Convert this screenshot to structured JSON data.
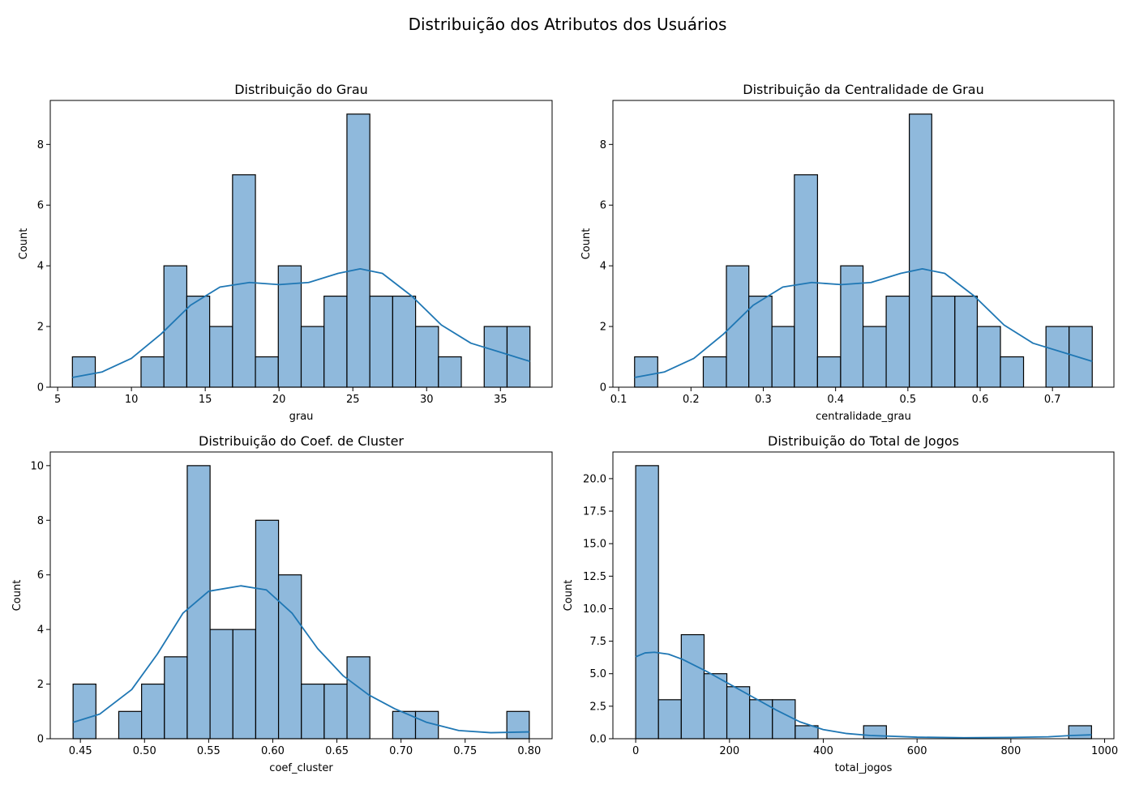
{
  "suptitle": "Distribuição dos Atributos dos Usuários",
  "colors": {
    "bar_fill": "#8fb9dc",
    "bar_edge": "#000000",
    "kde_line": "#1f77b4",
    "axis": "#000000"
  },
  "chart_data": [
    {
      "type": "bar",
      "title": "Distribuição do Grau",
      "xlabel": "grau",
      "ylabel": "Count",
      "xlim": [
        4.5,
        38.5
      ],
      "ylim": [
        0,
        9.45
      ],
      "xticks": [
        5,
        10,
        15,
        20,
        25,
        30,
        35
      ],
      "xtick_labels": [
        "5",
        "10",
        "15",
        "20",
        "25",
        "30",
        "35"
      ],
      "yticks": [
        0,
        2,
        4,
        6,
        8
      ],
      "ytick_labels": [
        "0",
        "2",
        "4",
        "6",
        "8"
      ],
      "bins": [
        {
          "x0": 6.0,
          "x1": 7.55,
          "count": 1
        },
        {
          "x0": 7.55,
          "x1": 9.1,
          "count": 0
        },
        {
          "x0": 9.1,
          "x1": 10.65,
          "count": 0
        },
        {
          "x0": 10.65,
          "x1": 12.2,
          "count": 1
        },
        {
          "x0": 12.2,
          "x1": 13.75,
          "count": 4
        },
        {
          "x0": 13.75,
          "x1": 15.3,
          "count": 3
        },
        {
          "x0": 15.3,
          "x1": 16.85,
          "count": 2
        },
        {
          "x0": 16.85,
          "x1": 18.4,
          "count": 7
        },
        {
          "x0": 18.4,
          "x1": 19.95,
          "count": 1
        },
        {
          "x0": 19.95,
          "x1": 21.5,
          "count": 4
        },
        {
          "x0": 21.5,
          "x1": 23.05,
          "count": 2
        },
        {
          "x0": 23.05,
          "x1": 24.6,
          "count": 3
        },
        {
          "x0": 24.6,
          "x1": 26.15,
          "count": 9
        },
        {
          "x0": 26.15,
          "x1": 27.7,
          "count": 3
        },
        {
          "x0": 27.7,
          "x1": 29.25,
          "count": 3
        },
        {
          "x0": 29.25,
          "x1": 30.8,
          "count": 2
        },
        {
          "x0": 30.8,
          "x1": 32.35,
          "count": 1
        },
        {
          "x0": 32.35,
          "x1": 33.9,
          "count": 0
        },
        {
          "x0": 33.9,
          "x1": 35.45,
          "count": 2
        },
        {
          "x0": 35.45,
          "x1": 37.0,
          "count": 2
        }
      ],
      "kde": [
        [
          6,
          0.32
        ],
        [
          8,
          0.5
        ],
        [
          10,
          0.95
        ],
        [
          12,
          1.75
        ],
        [
          14,
          2.7
        ],
        [
          16,
          3.3
        ],
        [
          18,
          3.45
        ],
        [
          20,
          3.38
        ],
        [
          22,
          3.45
        ],
        [
          24,
          3.75
        ],
        [
          25.5,
          3.9
        ],
        [
          27,
          3.75
        ],
        [
          29,
          3.0
        ],
        [
          31,
          2.05
        ],
        [
          33,
          1.45
        ],
        [
          35,
          1.15
        ],
        [
          37,
          0.85
        ]
      ]
    },
    {
      "type": "bar",
      "title": "Distribuição da Centralidade de Grau",
      "xlabel": "centralidade_grau",
      "ylabel": "Count",
      "xlim": [
        0.092,
        0.785
      ],
      "ylim": [
        0,
        9.45
      ],
      "xticks": [
        0.1,
        0.2,
        0.3,
        0.4,
        0.5,
        0.6,
        0.7
      ],
      "xtick_labels": [
        "0.1",
        "0.2",
        "0.3",
        "0.4",
        "0.5",
        "0.6",
        "0.7"
      ],
      "yticks": [
        0,
        2,
        4,
        6,
        8
      ],
      "ytick_labels": [
        "0",
        "2",
        "4",
        "6",
        "8"
      ],
      "bins": [
        {
          "x0": 0.122,
          "x1": 0.154,
          "count": 1
        },
        {
          "x0": 0.154,
          "x1": 0.185,
          "count": 0
        },
        {
          "x0": 0.185,
          "x1": 0.217,
          "count": 0
        },
        {
          "x0": 0.217,
          "x1": 0.249,
          "count": 1
        },
        {
          "x0": 0.249,
          "x1": 0.28,
          "count": 4
        },
        {
          "x0": 0.28,
          "x1": 0.312,
          "count": 3
        },
        {
          "x0": 0.312,
          "x1": 0.343,
          "count": 2
        },
        {
          "x0": 0.343,
          "x1": 0.375,
          "count": 7
        },
        {
          "x0": 0.375,
          "x1": 0.407,
          "count": 1
        },
        {
          "x0": 0.407,
          "x1": 0.438,
          "count": 4
        },
        {
          "x0": 0.438,
          "x1": 0.47,
          "count": 2
        },
        {
          "x0": 0.47,
          "x1": 0.502,
          "count": 3
        },
        {
          "x0": 0.502,
          "x1": 0.533,
          "count": 9
        },
        {
          "x0": 0.533,
          "x1": 0.565,
          "count": 3
        },
        {
          "x0": 0.565,
          "x1": 0.596,
          "count": 3
        },
        {
          "x0": 0.596,
          "x1": 0.628,
          "count": 2
        },
        {
          "x0": 0.628,
          "x1": 0.66,
          "count": 1
        },
        {
          "x0": 0.66,
          "x1": 0.691,
          "count": 0
        },
        {
          "x0": 0.691,
          "x1": 0.723,
          "count": 2
        },
        {
          "x0": 0.723,
          "x1": 0.755,
          "count": 2
        }
      ],
      "kde": [
        [
          0.122,
          0.32
        ],
        [
          0.163,
          0.5
        ],
        [
          0.204,
          0.95
        ],
        [
          0.245,
          1.75
        ],
        [
          0.286,
          2.7
        ],
        [
          0.327,
          3.3
        ],
        [
          0.367,
          3.45
        ],
        [
          0.408,
          3.38
        ],
        [
          0.449,
          3.45
        ],
        [
          0.49,
          3.75
        ],
        [
          0.52,
          3.9
        ],
        [
          0.551,
          3.75
        ],
        [
          0.592,
          3.0
        ],
        [
          0.633,
          2.05
        ],
        [
          0.673,
          1.45
        ],
        [
          0.714,
          1.15
        ],
        [
          0.755,
          0.85
        ]
      ]
    },
    {
      "type": "bar",
      "title": "Distribuição do Coef. de Cluster",
      "xlabel": "coef_cluster",
      "ylabel": "Count",
      "xlim": [
        0.4265,
        0.8178
      ],
      "ylim": [
        0,
        10.5
      ],
      "xticks": [
        0.45,
        0.5,
        0.55,
        0.6,
        0.65,
        0.7,
        0.75,
        0.8
      ],
      "xtick_labels": [
        "0.45",
        "0.50",
        "0.55",
        "0.60",
        "0.65",
        "0.70",
        "0.75",
        "0.80"
      ],
      "yticks": [
        0,
        2,
        4,
        6,
        8,
        10
      ],
      "ytick_labels": [
        "0",
        "2",
        "4",
        "6",
        "8",
        "10"
      ],
      "bins": [
        {
          "x0": 0.4443,
          "x1": 0.4621,
          "count": 2
        },
        {
          "x0": 0.4621,
          "x1": 0.4799,
          "count": 0
        },
        {
          "x0": 0.4799,
          "x1": 0.4977,
          "count": 1
        },
        {
          "x0": 0.4977,
          "x1": 0.5155,
          "count": 2
        },
        {
          "x0": 0.5155,
          "x1": 0.5333,
          "count": 3
        },
        {
          "x0": 0.5333,
          "x1": 0.5511,
          "count": 10
        },
        {
          "x0": 0.5511,
          "x1": 0.5689,
          "count": 4
        },
        {
          "x0": 0.5689,
          "x1": 0.5867,
          "count": 4
        },
        {
          "x0": 0.5867,
          "x1": 0.6045,
          "count": 8
        },
        {
          "x0": 0.6045,
          "x1": 0.6223,
          "count": 6
        },
        {
          "x0": 0.6223,
          "x1": 0.6401,
          "count": 2
        },
        {
          "x0": 0.6401,
          "x1": 0.6579,
          "count": 2
        },
        {
          "x0": 0.6579,
          "x1": 0.6757,
          "count": 3
        },
        {
          "x0": 0.6757,
          "x1": 0.6935,
          "count": 0
        },
        {
          "x0": 0.6935,
          "x1": 0.7113,
          "count": 1
        },
        {
          "x0": 0.7113,
          "x1": 0.7291,
          "count": 1
        },
        {
          "x0": 0.7291,
          "x1": 0.7469,
          "count": 0
        },
        {
          "x0": 0.7469,
          "x1": 0.7647,
          "count": 0
        },
        {
          "x0": 0.7647,
          "x1": 0.7825,
          "count": 0
        },
        {
          "x0": 0.7825,
          "x1": 0.8,
          "count": 1
        }
      ],
      "kde": [
        [
          0.4443,
          0.6
        ],
        [
          0.465,
          0.9
        ],
        [
          0.49,
          1.8
        ],
        [
          0.51,
          3.1
        ],
        [
          0.53,
          4.6
        ],
        [
          0.55,
          5.4
        ],
        [
          0.575,
          5.6
        ],
        [
          0.595,
          5.45
        ],
        [
          0.615,
          4.6
        ],
        [
          0.635,
          3.3
        ],
        [
          0.655,
          2.3
        ],
        [
          0.675,
          1.6
        ],
        [
          0.695,
          1.1
        ],
        [
          0.72,
          0.6
        ],
        [
          0.745,
          0.3
        ],
        [
          0.77,
          0.22
        ],
        [
          0.8,
          0.25
        ]
      ]
    },
    {
      "type": "bar",
      "title": "Distribuição do Total de Jogos",
      "xlabel": "total_jogos",
      "ylabel": "Count",
      "xlim": [
        -48.6,
        1019.8
      ],
      "ylim": [
        0,
        22.05
      ],
      "xticks": [
        0,
        200,
        400,
        600,
        800,
        1000
      ],
      "xtick_labels": [
        "0",
        "200",
        "400",
        "600",
        "800",
        "1000"
      ],
      "yticks": [
        0,
        2.5,
        5,
        7.5,
        10,
        12.5,
        15,
        17.5,
        20
      ],
      "ytick_labels": [
        "0.0",
        "2.5",
        "5.0",
        "7.5",
        "10.0",
        "12.5",
        "15.0",
        "17.5",
        "20.0"
      ],
      "bins": [
        {
          "x0": 0,
          "x1": 48.6,
          "count": 21
        },
        {
          "x0": 48.6,
          "x1": 97.2,
          "count": 3
        },
        {
          "x0": 97.2,
          "x1": 145.8,
          "count": 8
        },
        {
          "x0": 145.8,
          "x1": 194.4,
          "count": 5
        },
        {
          "x0": 194.4,
          "x1": 243.0,
          "count": 4
        },
        {
          "x0": 243.0,
          "x1": 291.6,
          "count": 3
        },
        {
          "x0": 291.6,
          "x1": 340.2,
          "count": 3
        },
        {
          "x0": 340.2,
          "x1": 388.8,
          "count": 1
        },
        {
          "x0": 388.8,
          "x1": 437.4,
          "count": 0
        },
        {
          "x0": 437.4,
          "x1": 486.0,
          "count": 0
        },
        {
          "x0": 486.0,
          "x1": 534.6,
          "count": 1
        },
        {
          "x0": 534.6,
          "x1": 583.2,
          "count": 0
        },
        {
          "x0": 583.2,
          "x1": 631.8,
          "count": 0
        },
        {
          "x0": 631.8,
          "x1": 680.4,
          "count": 0
        },
        {
          "x0": 680.4,
          "x1": 729.0,
          "count": 0
        },
        {
          "x0": 729.0,
          "x1": 777.6,
          "count": 0
        },
        {
          "x0": 777.6,
          "x1": 826.2,
          "count": 0
        },
        {
          "x0": 826.2,
          "x1": 874.8,
          "count": 0
        },
        {
          "x0": 874.8,
          "x1": 923.4,
          "count": 0
        },
        {
          "x0": 923.4,
          "x1": 972.0,
          "count": 1
        }
      ],
      "kde": [
        [
          0,
          6.3
        ],
        [
          20,
          6.6
        ],
        [
          40,
          6.65
        ],
        [
          70,
          6.5
        ],
        [
          100,
          6.1
        ],
        [
          150,
          5.2
        ],
        [
          200,
          4.2
        ],
        [
          250,
          3.2
        ],
        [
          300,
          2.2
        ],
        [
          350,
          1.3
        ],
        [
          400,
          0.7
        ],
        [
          450,
          0.4
        ],
        [
          500,
          0.25
        ],
        [
          600,
          0.12
        ],
        [
          700,
          0.08
        ],
        [
          800,
          0.1
        ],
        [
          880,
          0.15
        ],
        [
          930,
          0.25
        ],
        [
          972,
          0.3
        ]
      ]
    }
  ]
}
